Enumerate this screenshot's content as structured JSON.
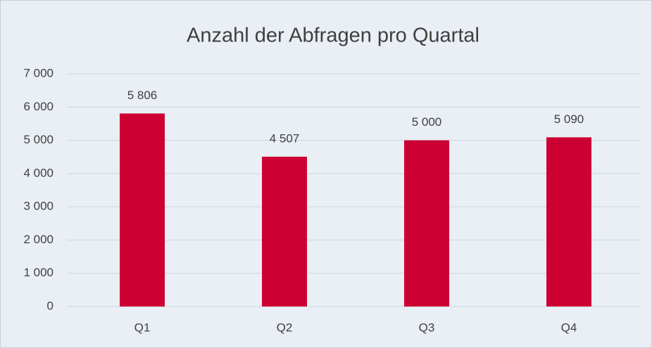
{
  "chart_data": {
    "type": "bar",
    "title": "Anzahl der Abfragen pro Quartal",
    "categories": [
      "Q1",
      "Q2",
      "Q3",
      "Q4"
    ],
    "values": [
      5806,
      4507,
      5000,
      5090
    ],
    "value_labels": [
      "5 806",
      "4 507",
      "5 000",
      "5 090"
    ],
    "color": "#cc0033",
    "ylim": [
      0,
      7000
    ],
    "yticks": [
      0,
      {
        "value": 1000,
        "label": "1 000"
      },
      {
        "value": 2000,
        "label": "2 000"
      },
      {
        "value": 3000,
        "label": "3 000"
      },
      {
        "value": 4000,
        "label": "4 000"
      },
      {
        "value": 5000,
        "label": "5 000"
      },
      {
        "value": 6000,
        "label": "6 000"
      },
      {
        "value": 7000,
        "label": "7 000"
      }
    ],
    "grid": true
  }
}
